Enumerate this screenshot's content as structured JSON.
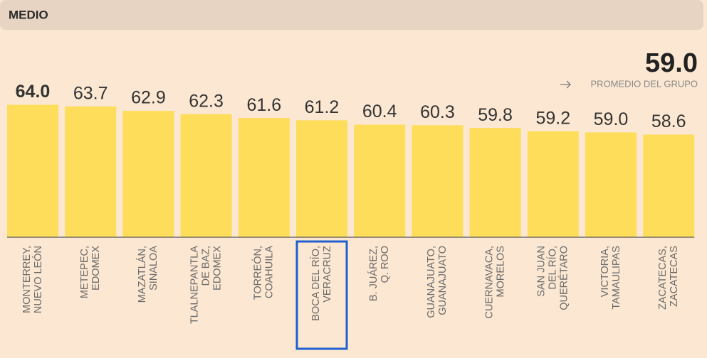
{
  "chart_data": {
    "type": "bar",
    "title": "MEDIO",
    "categories": [
      [
        "MONTERREY,",
        "NUEVO LEÓN"
      ],
      [
        "METEPEC,",
        "EDOMEX"
      ],
      [
        "MAZATLÁN,",
        "SINALOA"
      ],
      [
        "TLALNEPANTLA",
        "DE BAZ,",
        "EDOMEX"
      ],
      [
        "TORREÓN,",
        "COAHUILA"
      ],
      [
        "BOCA DEL RÍO,",
        "VERACRUZ"
      ],
      [
        "B. JUÁREZ,",
        "Q. ROO"
      ],
      [
        "GUANAJUATO,",
        "GUANAJUATO"
      ],
      [
        "CUERNAVACA,",
        "MORELOS"
      ],
      [
        "SAN JUAN",
        "DEL RÍO,",
        "QUERÉTARO"
      ],
      [
        "VICTORIA,",
        "TAMAULIPAS"
      ],
      [
        "ZACATECAS,",
        "ZACATECAS"
      ]
    ],
    "values": [
      64.0,
      63.7,
      62.9,
      62.3,
      61.6,
      61.2,
      60.4,
      60.3,
      59.8,
      59.2,
      59.0,
      58.6
    ],
    "value_labels": [
      "64.0",
      "63.7",
      "62.9",
      "62.3",
      "61.6",
      "61.2",
      "60.4",
      "60.3",
      "59.8",
      "59.2",
      "59.0",
      "58.6"
    ],
    "color": "#fedd5a",
    "ylim": [
      40,
      66
    ],
    "average": 59.0,
    "average_value_label": "59.0",
    "average_label": "PROMEDIO DEL GRUPO",
    "highlight_index": 5,
    "highlight_color": "#1f5fcf"
  }
}
